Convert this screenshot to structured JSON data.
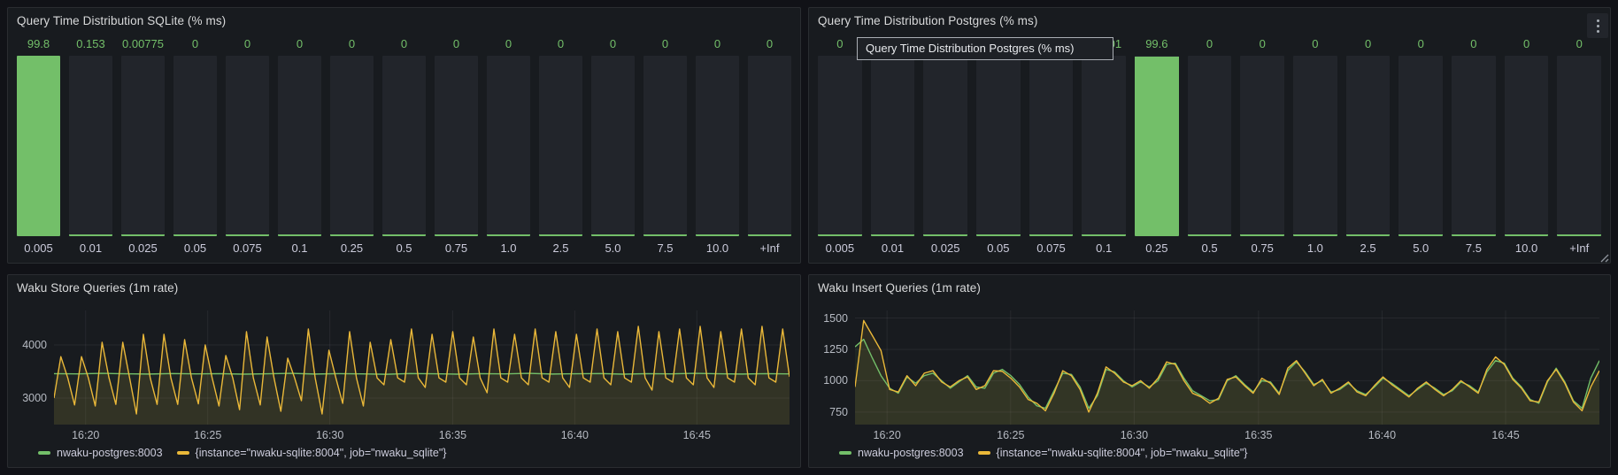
{
  "colors": {
    "green": "#73bf69",
    "yellow": "#eab839",
    "green_fill": "rgba(115,191,105,0.07)",
    "yellow_fill": "rgba(234,184,57,0.10)",
    "panel_bg": "#181b1f",
    "page_bg": "#111217",
    "grid": "rgba(204,204,220,0.08)"
  },
  "panels": [
    {
      "id": "sqlite-dist",
      "title": "Query Time Distribution SQLite (% ms)"
    },
    {
      "id": "postgres-dist",
      "title": "Query Time Distribution Postgres (% ms)",
      "tooltip": "Query Time Distribution Postgres (% ms)"
    },
    {
      "id": "store-queries",
      "title": "Waku Store Queries (1m rate)",
      "legend": [
        {
          "label": "nwaku-postgres:8003",
          "color": "#73bf69"
        },
        {
          "label": "{instance=\"nwaku-sqlite:8004\", job=\"nwaku_sqlite\"}",
          "color": "#eab839"
        }
      ]
    },
    {
      "id": "insert-queries",
      "title": "Waku Insert Queries (1m rate)",
      "legend": [
        {
          "label": "nwaku-postgres:8003",
          "color": "#73bf69"
        },
        {
          "label": "{instance=\"nwaku-sqlite:8004\", job=\"nwaku_sqlite\"}",
          "color": "#eab839"
        }
      ]
    }
  ],
  "chart_data": [
    {
      "type": "bar",
      "name": "query-time-distribution-sqlite",
      "title": "Query Time Distribution SQLite (% ms)",
      "categories": [
        "0.005",
        "0.01",
        "0.025",
        "0.05",
        "0.075",
        "0.1",
        "0.25",
        "0.5",
        "0.75",
        "1.0",
        "2.5",
        "5.0",
        "7.5",
        "10.0",
        "+Inf"
      ],
      "values": [
        99.8,
        0.153,
        0.00775,
        0,
        0,
        0,
        0,
        0,
        0,
        0,
        0,
        0,
        0,
        0,
        0
      ],
      "value_labels": [
        "99.8",
        "0.153",
        "0.00775",
        "0",
        "0",
        "0",
        "0",
        "0",
        "0",
        "0",
        "0",
        "0",
        "0",
        "0",
        "0"
      ],
      "bar_color": "#73bf69",
      "ylim": [
        0,
        100
      ],
      "grid": false,
      "legend_position": "none"
    },
    {
      "type": "bar",
      "name": "query-time-distribution-postgres",
      "title": "Query Time Distribution Postgres (% ms)",
      "categories": [
        "0.005",
        "0.01",
        "0.025",
        "0.05",
        "0.075",
        "0.1",
        "0.25",
        "0.5",
        "0.75",
        "1.0",
        "2.5",
        "5.0",
        "7.5",
        "10.0",
        "+Inf"
      ],
      "values": [
        0,
        0,
        0,
        0,
        0,
        0.0101,
        99.6,
        0,
        0,
        0,
        0,
        0,
        0,
        0,
        0
      ],
      "value_labels": [
        "0",
        "",
        "",
        "",
        "",
        "0.0101",
        "99.6",
        "0",
        "0",
        "0",
        "0",
        "0",
        "0",
        "0",
        "0"
      ],
      "bar_color": "#73bf69",
      "ylim": [
        0,
        100
      ],
      "grid": false,
      "legend_position": "none",
      "note_labels_hidden_by_tooltip": true
    },
    {
      "type": "line",
      "name": "waku-store-queries",
      "title": "Waku Store Queries (1m rate)",
      "xlabel": "",
      "ylabel": "",
      "ylim": [
        2500,
        4650
      ],
      "yticks": [
        {
          "value": 3000,
          "label": "3000"
        },
        {
          "value": 4000,
          "label": "4000"
        }
      ],
      "xticks": [
        {
          "label": "16:20",
          "pos": 0.043
        },
        {
          "label": "16:25",
          "pos": 0.209
        },
        {
          "label": "16:30",
          "pos": 0.375
        },
        {
          "label": "16:35",
          "pos": 0.542
        },
        {
          "label": "16:40",
          "pos": 0.708
        },
        {
          "label": "16:45",
          "pos": 0.874
        }
      ],
      "grid": true,
      "legend_position": "bottom",
      "series": [
        {
          "name": "nwaku-postgres:8003",
          "color": "#73bf69",
          "fill": "rgba(115,191,105,0.06)",
          "values": [
            3460,
            3455,
            3465,
            3458,
            3452,
            3462,
            3455,
            3460,
            3450,
            3458,
            3466,
            3452,
            3460,
            3455,
            3448,
            3462,
            3458,
            3450,
            3460,
            3455,
            3465,
            3452,
            3458,
            3462,
            3450,
            3460,
            3455,
            3465,
            3458,
            3452,
            3460,
            3455
          ]
        },
        {
          "name": "{instance=\"nwaku-sqlite:8004\", job=\"nwaku_sqlite\"}",
          "color": "#eab839",
          "fill": "rgba(234,184,57,0.10)",
          "values": [
            3000,
            3780,
            3380,
            2870,
            3780,
            3380,
            2850,
            4050,
            3380,
            2880,
            4050,
            3380,
            2700,
            4200,
            3380,
            2880,
            4200,
            3380,
            2880,
            4100,
            3380,
            2890,
            4000,
            3380,
            2850,
            3800,
            3380,
            2780,
            4250,
            3380,
            2870,
            4150,
            3380,
            2750,
            3750,
            3380,
            2950,
            4300,
            3380,
            2700,
            3900,
            3380,
            2900,
            4250,
            3380,
            2850,
            4050,
            3380,
            3250,
            4100,
            3380,
            3300,
            4300,
            3380,
            3200,
            4200,
            3380,
            3300,
            4250,
            3380,
            3250,
            4150,
            3380,
            3100,
            4300,
            3380,
            3300,
            4200,
            3380,
            3250,
            4300,
            3380,
            3300,
            4250,
            3380,
            3200,
            4200,
            3380,
            3300,
            4300,
            3380,
            3250,
            4250,
            3380,
            3300,
            4350,
            3380,
            3150,
            4250,
            3380,
            3300,
            4300,
            3380,
            3250,
            4350,
            3380,
            3200,
            4250,
            3380,
            3300,
            4300,
            3380,
            3250,
            4350,
            3380,
            3300,
            4300,
            3400
          ]
        }
      ]
    },
    {
      "type": "line",
      "name": "waku-insert-queries",
      "title": "Waku Insert Queries (1m rate)",
      "xlabel": "",
      "ylabel": "",
      "ylim": [
        650,
        1560
      ],
      "yticks": [
        {
          "value": 750,
          "label": "750"
        },
        {
          "value": 1000,
          "label": "1000"
        },
        {
          "value": 1250,
          "label": "1250"
        },
        {
          "value": 1500,
          "label": "1500"
        }
      ],
      "xticks": [
        {
          "label": "16:20",
          "pos": 0.043
        },
        {
          "label": "16:25",
          "pos": 0.209
        },
        {
          "label": "16:30",
          "pos": 0.375
        },
        {
          "label": "16:35",
          "pos": 0.542
        },
        {
          "label": "16:40",
          "pos": 0.708
        },
        {
          "label": "16:45",
          "pos": 0.874
        }
      ],
      "grid": true,
      "legend_position": "bottom",
      "series": [
        {
          "name": "nwaku-postgres:8003",
          "color": "#73bf69",
          "fill": "rgba(115,191,105,0.07)",
          "values": [
            1270,
            1330,
            1180,
            1040,
            940,
            900,
            1030,
            980,
            1040,
            1060,
            1000,
            940,
            990,
            1040,
            950,
            940,
            1060,
            1090,
            1040,
            970,
            870,
            800,
            780,
            920,
            1060,
            1050,
            950,
            780,
            880,
            1090,
            1070,
            1000,
            950,
            990,
            950,
            1000,
            1130,
            1140,
            1020,
            920,
            880,
            840,
            850,
            1000,
            1040,
            970,
            910,
            1000,
            990,
            900,
            1080,
            1150,
            1070,
            970,
            1000,
            910,
            930,
            980,
            920,
            890,
            950,
            1020,
            980,
            930,
            880,
            930,
            980,
            940,
            890,
            920,
            990,
            960,
            910,
            1070,
            1160,
            1140,
            1020,
            950,
            850,
            820,
            990,
            1100,
            990,
            840,
            780,
            1020,
            1160
          ]
        },
        {
          "name": "{instance=\"nwaku-sqlite:8004\", job=\"nwaku_sqlite\"}",
          "color": "#eab839",
          "fill": "rgba(234,184,57,0.10)",
          "values": [
            950,
            1480,
            1360,
            1240,
            930,
            910,
            1040,
            960,
            1060,
            1080,
            990,
            950,
            1000,
            1030,
            930,
            960,
            1080,
            1075,
            1020,
            950,
            850,
            820,
            760,
            900,
            1080,
            1040,
            930,
            750,
            900,
            1110,
            1060,
            990,
            960,
            1000,
            940,
            1020,
            1150,
            1130,
            1000,
            900,
            870,
            820,
            860,
            1010,
            1030,
            960,
            900,
            1020,
            980,
            890,
            1100,
            1160,
            1060,
            960,
            1010,
            900,
            940,
            990,
            910,
            880,
            960,
            1030,
            970,
            920,
            870,
            940,
            990,
            930,
            880,
            930,
            1000,
            950,
            900,
            1090,
            1190,
            1130,
            1010,
            940,
            840,
            830,
            1000,
            1090,
            980,
            830,
            760,
            950,
            1080
          ]
        }
      ]
    }
  ]
}
